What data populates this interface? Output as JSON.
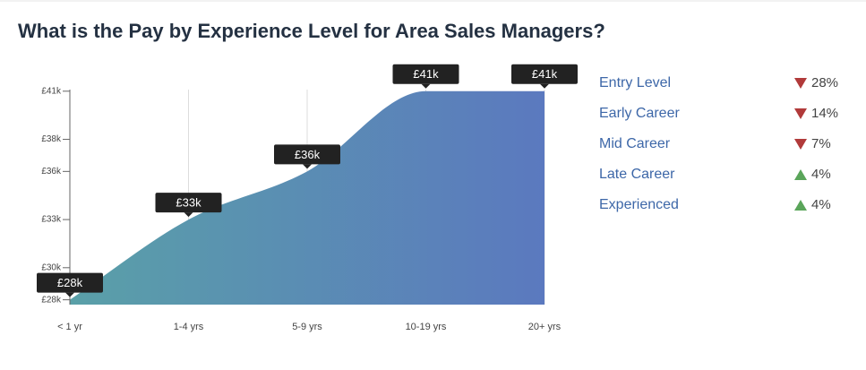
{
  "title": "What is the Pay by Experience Level for Area Sales Managers?",
  "chart_data": {
    "type": "area",
    "categories": [
      "< 1 yr",
      "1-4 yrs",
      "5-9 yrs",
      "10-19 yrs",
      "20+ yrs"
    ],
    "values": [
      28,
      33,
      36,
      41,
      41
    ],
    "value_labels": [
      "£28k",
      "£33k",
      "£36k",
      "£41k",
      "£41k"
    ],
    "color": [
      "#5aa0a8",
      "#5b79bf"
    ],
    "ylim": [
      27.7,
      41.1
    ],
    "yticks": [
      {
        "value": 28,
        "label": "£28k"
      },
      {
        "value": 30,
        "label": "£30k"
      },
      {
        "value": 33,
        "label": "£33k"
      },
      {
        "value": 36,
        "label": "£36k"
      },
      {
        "value": 38,
        "label": "£38k"
      },
      {
        "value": 41,
        "label": "£41k"
      }
    ],
    "grid": true
  },
  "levels": [
    {
      "label": "Entry Level",
      "direction": "down",
      "change": "28%"
    },
    {
      "label": "Early Career",
      "direction": "down",
      "change": "14%"
    },
    {
      "label": "Mid Career",
      "direction": "down",
      "change": "7%"
    },
    {
      "label": "Late Career",
      "direction": "up",
      "change": "4%"
    },
    {
      "label": "Experienced",
      "direction": "up",
      "change": "4%"
    }
  ]
}
